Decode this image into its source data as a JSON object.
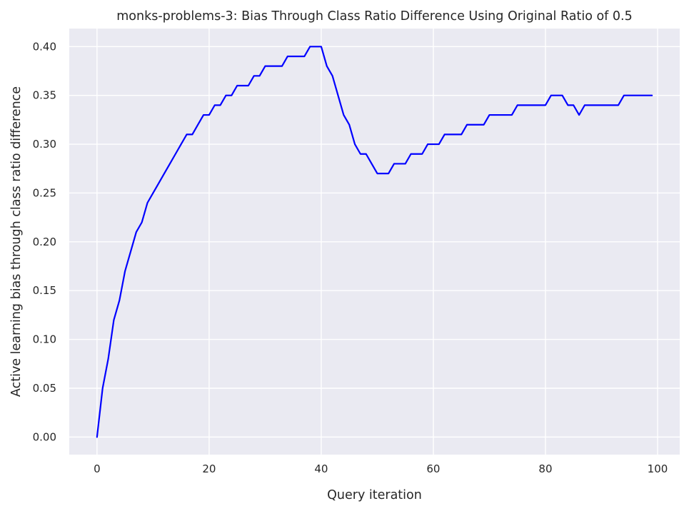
{
  "chart_data": {
    "type": "line",
    "title": "monks-problems-3: Bias Through Class Ratio Difference Using Original Ratio of 0.5",
    "xlabel": "Query iteration",
    "ylabel": "Active learning bias through class ratio difference",
    "xlim": [
      -4.95,
      103.95
    ],
    "ylim": [
      -0.018,
      0.4185
    ],
    "xticks": [
      0,
      20,
      40,
      60,
      80,
      100
    ],
    "xtick_labels": [
      "0",
      "20",
      "40",
      "60",
      "80",
      "100"
    ],
    "yticks": [
      0.0,
      0.05,
      0.1,
      0.15,
      0.2,
      0.25,
      0.3,
      0.35,
      0.4
    ],
    "ytick_labels": [
      "0.00",
      "0.05",
      "0.10",
      "0.15",
      "0.20",
      "0.25",
      "0.30",
      "0.35",
      "0.40"
    ],
    "grid": true,
    "background_color": "#eaeaf2",
    "grid_color": "#ffffff",
    "line_color": "#0000ff",
    "series": [
      {
        "x": [
          0,
          1,
          2,
          3,
          4,
          5,
          6,
          7,
          8,
          9,
          10,
          11,
          12,
          13,
          14,
          15,
          16,
          17,
          18,
          19,
          20,
          21,
          22,
          23,
          24,
          25,
          26,
          27,
          28,
          29,
          30,
          31,
          32,
          33,
          34,
          35,
          36,
          37,
          38,
          39,
          40,
          41,
          42,
          43,
          44,
          45,
          46,
          47,
          48,
          49,
          50,
          51,
          52,
          53,
          54,
          55,
          56,
          57,
          58,
          59,
          60,
          61,
          62,
          63,
          64,
          65,
          66,
          67,
          68,
          69,
          70,
          71,
          72,
          73,
          74,
          75,
          76,
          77,
          78,
          79,
          80,
          81,
          82,
          83,
          84,
          85,
          86,
          87,
          88,
          89,
          90,
          91,
          92,
          93,
          94,
          95,
          96,
          97,
          98,
          99
        ],
        "values": [
          0.0,
          0.05,
          0.08,
          0.12,
          0.14,
          0.17,
          0.19,
          0.21,
          0.22,
          0.24,
          0.25,
          0.26,
          0.27,
          0.28,
          0.29,
          0.3,
          0.31,
          0.31,
          0.32,
          0.33,
          0.33,
          0.34,
          0.34,
          0.35,
          0.35,
          0.36,
          0.36,
          0.36,
          0.37,
          0.37,
          0.38,
          0.38,
          0.38,
          0.38,
          0.39,
          0.39,
          0.39,
          0.39,
          0.4,
          0.4,
          0.4,
          0.38,
          0.37,
          0.35,
          0.33,
          0.32,
          0.3,
          0.29,
          0.29,
          0.28,
          0.27,
          0.27,
          0.27,
          0.28,
          0.28,
          0.28,
          0.29,
          0.29,
          0.29,
          0.3,
          0.3,
          0.3,
          0.31,
          0.31,
          0.31,
          0.31,
          0.32,
          0.32,
          0.32,
          0.32,
          0.33,
          0.33,
          0.33,
          0.33,
          0.33,
          0.34,
          0.34,
          0.34,
          0.34,
          0.34,
          0.34,
          0.35,
          0.35,
          0.35,
          0.34,
          0.34,
          0.33,
          0.34,
          0.34,
          0.34,
          0.34,
          0.34,
          0.34,
          0.34,
          0.35,
          0.35,
          0.35,
          0.35,
          0.35,
          0.35
        ]
      }
    ]
  }
}
